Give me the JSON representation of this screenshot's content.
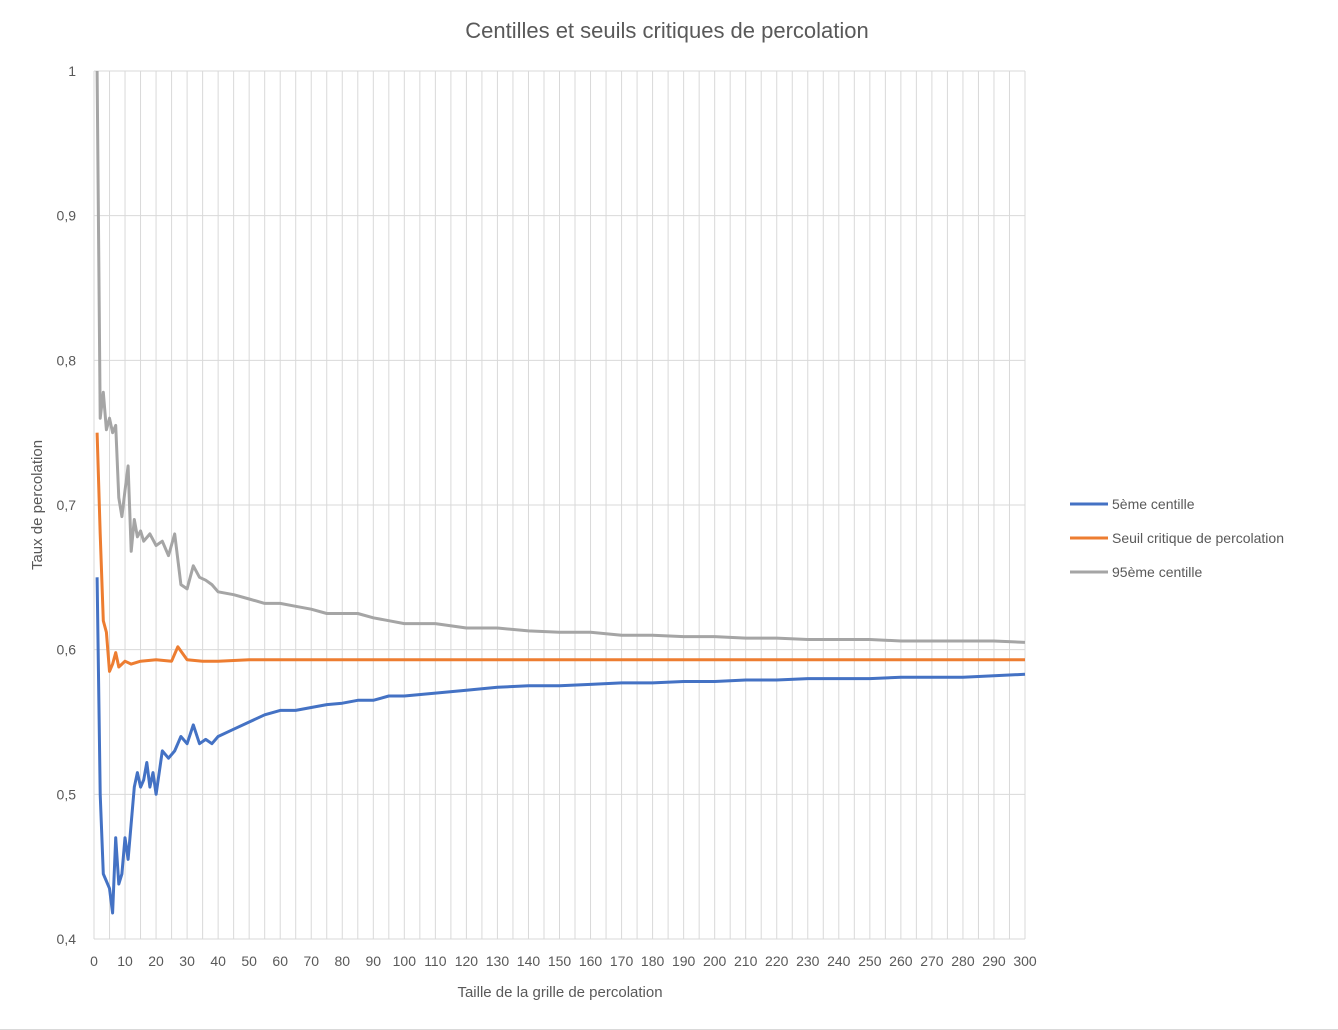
{
  "chart_data": {
    "type": "line",
    "title": "Centilles et seuils critiques de percolation",
    "xlabel": "Taille de la grille de percolation",
    "ylabel": "Taux de percolation",
    "xlim": [
      0,
      300
    ],
    "ylim": [
      0.4,
      1
    ],
    "x_ticks": [
      "0",
      "10",
      "20",
      "30",
      "40",
      "50",
      "60",
      "70",
      "80",
      "90",
      "100",
      "110",
      "120",
      "130",
      "140",
      "150",
      "160",
      "170",
      "180",
      "190",
      "200",
      "210",
      "220",
      "230",
      "240",
      "250",
      "260",
      "270",
      "280",
      "290",
      "300"
    ],
    "y_ticks": [
      "0,4",
      "0,5",
      "0,6",
      "0,7",
      "0,8",
      "0,9",
      "1"
    ],
    "grid": true,
    "legend_position": "right",
    "series": [
      {
        "name": "5ème centille",
        "color": "#4472C4",
        "points": [
          [
            1,
            0.65
          ],
          [
            2,
            0.5
          ],
          [
            3,
            0.445
          ],
          [
            4,
            0.44
          ],
          [
            5,
            0.435
          ],
          [
            6,
            0.418
          ],
          [
            7,
            0.47
          ],
          [
            8,
            0.438
          ],
          [
            9,
            0.445
          ],
          [
            10,
            0.47
          ],
          [
            11,
            0.455
          ],
          [
            12,
            0.48
          ],
          [
            13,
            0.505
          ],
          [
            14,
            0.515
          ],
          [
            15,
            0.505
          ],
          [
            16,
            0.51
          ],
          [
            17,
            0.522
          ],
          [
            18,
            0.505
          ],
          [
            19,
            0.515
          ],
          [
            20,
            0.5
          ],
          [
            22,
            0.53
          ],
          [
            24,
            0.525
          ],
          [
            26,
            0.53
          ],
          [
            28,
            0.54
          ],
          [
            30,
            0.535
          ],
          [
            32,
            0.548
          ],
          [
            34,
            0.535
          ],
          [
            36,
            0.538
          ],
          [
            38,
            0.535
          ],
          [
            40,
            0.54
          ],
          [
            45,
            0.545
          ],
          [
            50,
            0.55
          ],
          [
            55,
            0.555
          ],
          [
            60,
            0.558
          ],
          [
            65,
            0.558
          ],
          [
            70,
            0.56
          ],
          [
            75,
            0.562
          ],
          [
            80,
            0.563
          ],
          [
            85,
            0.565
          ],
          [
            90,
            0.565
          ],
          [
            95,
            0.568
          ],
          [
            100,
            0.568
          ],
          [
            110,
            0.57
          ],
          [
            120,
            0.572
          ],
          [
            130,
            0.574
          ],
          [
            140,
            0.575
          ],
          [
            150,
            0.575
          ],
          [
            160,
            0.576
          ],
          [
            170,
            0.577
          ],
          [
            180,
            0.577
          ],
          [
            190,
            0.578
          ],
          [
            200,
            0.578
          ],
          [
            210,
            0.579
          ],
          [
            220,
            0.579
          ],
          [
            230,
            0.58
          ],
          [
            240,
            0.58
          ],
          [
            250,
            0.58
          ],
          [
            260,
            0.581
          ],
          [
            270,
            0.581
          ],
          [
            280,
            0.581
          ],
          [
            290,
            0.582
          ],
          [
            300,
            0.583
          ]
        ]
      },
      {
        "name": "Seuil critique de percolation",
        "color": "#ED7D31",
        "points": [
          [
            1,
            0.75
          ],
          [
            2,
            0.68
          ],
          [
            3,
            0.62
          ],
          [
            4,
            0.612
          ],
          [
            5,
            0.585
          ],
          [
            6,
            0.59
          ],
          [
            7,
            0.598
          ],
          [
            8,
            0.588
          ],
          [
            9,
            0.59
          ],
          [
            10,
            0.592
          ],
          [
            12,
            0.59
          ],
          [
            15,
            0.592
          ],
          [
            20,
            0.593
          ],
          [
            25,
            0.592
          ],
          [
            27,
            0.602
          ],
          [
            30,
            0.593
          ],
          [
            35,
            0.592
          ],
          [
            40,
            0.592
          ],
          [
            50,
            0.593
          ],
          [
            60,
            0.593
          ],
          [
            70,
            0.593
          ],
          [
            80,
            0.593
          ],
          [
            90,
            0.593
          ],
          [
            100,
            0.593
          ],
          [
            120,
            0.593
          ],
          [
            140,
            0.593
          ],
          [
            160,
            0.593
          ],
          [
            180,
            0.593
          ],
          [
            200,
            0.593
          ],
          [
            220,
            0.593
          ],
          [
            240,
            0.593
          ],
          [
            260,
            0.593
          ],
          [
            280,
            0.593
          ],
          [
            300,
            0.593
          ]
        ]
      },
      {
        "name": "95ème centille",
        "color": "#A5A5A5",
        "points": [
          [
            1,
            1.0
          ],
          [
            2,
            0.76
          ],
          [
            3,
            0.778
          ],
          [
            4,
            0.752
          ],
          [
            5,
            0.76
          ],
          [
            6,
            0.75
          ],
          [
            7,
            0.755
          ],
          [
            8,
            0.705
          ],
          [
            9,
            0.692
          ],
          [
            10,
            0.71
          ],
          [
            11,
            0.727
          ],
          [
            12,
            0.668
          ],
          [
            13,
            0.69
          ],
          [
            14,
            0.678
          ],
          [
            15,
            0.682
          ],
          [
            16,
            0.675
          ],
          [
            18,
            0.68
          ],
          [
            20,
            0.672
          ],
          [
            22,
            0.675
          ],
          [
            24,
            0.665
          ],
          [
            26,
            0.68
          ],
          [
            28,
            0.645
          ],
          [
            30,
            0.642
          ],
          [
            32,
            0.658
          ],
          [
            34,
            0.65
          ],
          [
            36,
            0.648
          ],
          [
            38,
            0.645
          ],
          [
            40,
            0.64
          ],
          [
            45,
            0.638
          ],
          [
            50,
            0.635
          ],
          [
            55,
            0.632
          ],
          [
            60,
            0.632
          ],
          [
            65,
            0.63
          ],
          [
            70,
            0.628
          ],
          [
            75,
            0.625
          ],
          [
            80,
            0.625
          ],
          [
            85,
            0.625
          ],
          [
            90,
            0.622
          ],
          [
            95,
            0.62
          ],
          [
            100,
            0.618
          ],
          [
            110,
            0.618
          ],
          [
            120,
            0.615
          ],
          [
            130,
            0.615
          ],
          [
            140,
            0.613
          ],
          [
            150,
            0.612
          ],
          [
            160,
            0.612
          ],
          [
            170,
            0.61
          ],
          [
            180,
            0.61
          ],
          [
            190,
            0.609
          ],
          [
            200,
            0.609
          ],
          [
            210,
            0.608
          ],
          [
            220,
            0.608
          ],
          [
            230,
            0.607
          ],
          [
            240,
            0.607
          ],
          [
            250,
            0.607
          ],
          [
            260,
            0.606
          ],
          [
            270,
            0.606
          ],
          [
            280,
            0.606
          ],
          [
            290,
            0.606
          ],
          [
            300,
            0.605
          ]
        ]
      }
    ]
  }
}
